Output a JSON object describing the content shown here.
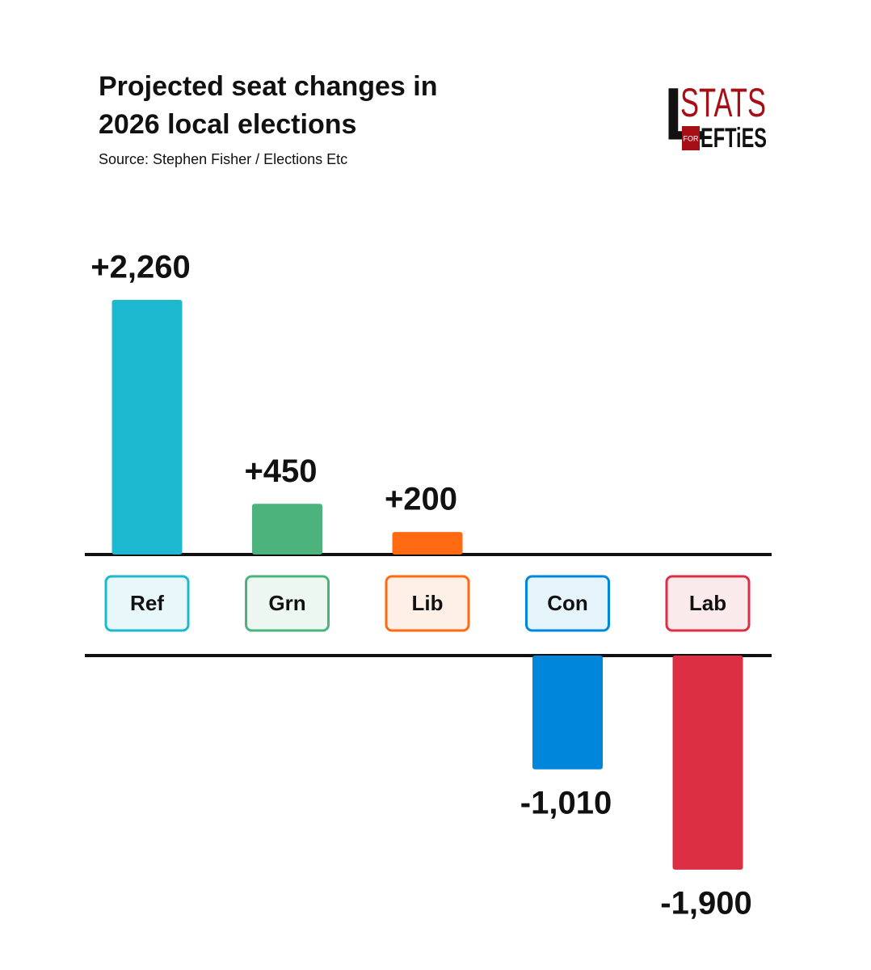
{
  "chart_data": {
    "type": "bar",
    "title": "Projected seat changes in 2026 local elections",
    "subtitle": "Source: Stephen Fisher / Elections Etc",
    "categories": [
      "Ref",
      "Grn",
      "Lib",
      "Con",
      "Lab"
    ],
    "values": [
      2260,
      450,
      200,
      -1010,
      -1900
    ],
    "value_labels": [
      "+2,260",
      "+450",
      "+200",
      "-1,010",
      "-1,900"
    ],
    "colors": [
      "#1bb8d0",
      "#4db37c",
      "#ff6a13",
      "#0087dc",
      "#dc2f44"
    ]
  },
  "logo": {
    "l": "L",
    "stats": "STATS",
    "for": "FOR",
    "efties": "EFTiES"
  }
}
